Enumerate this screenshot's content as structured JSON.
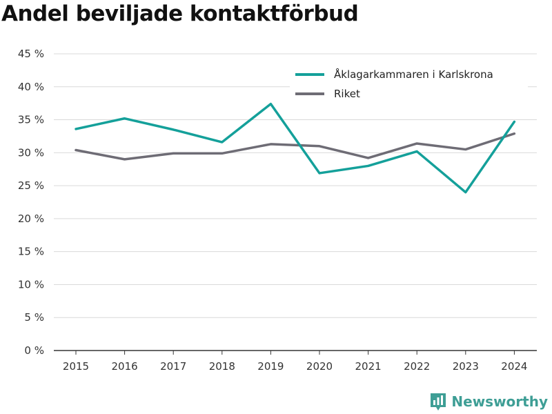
{
  "chart_data": {
    "type": "line",
    "title": "Andel beviljade kontaktförbud",
    "xlabel": "",
    "ylabel": "",
    "categories": [
      "2015",
      "2016",
      "2017",
      "2018",
      "2019",
      "2020",
      "2021",
      "2022",
      "2023",
      "2024"
    ],
    "ylim": [
      0,
      45
    ],
    "yticks": [
      0,
      5,
      10,
      15,
      20,
      25,
      30,
      35,
      40,
      45
    ],
    "ytick_labels": [
      "0 %",
      "5 %",
      "10 %",
      "15 %",
      "20 %",
      "25 %",
      "30 %",
      "35 %",
      "40 %",
      "45 %"
    ],
    "grid": true,
    "legend_position": "top-right",
    "series": [
      {
        "name": "Åklagarkammaren i Karlskrona",
        "color": "#14a09a",
        "values": [
          33.6,
          35.2,
          33.5,
          31.6,
          37.4,
          26.9,
          28.0,
          30.2,
          24.0,
          34.7
        ]
      },
      {
        "name": "Riket",
        "color": "#6e6c75",
        "values": [
          30.4,
          29.0,
          29.9,
          29.9,
          31.3,
          31.0,
          29.2,
          31.4,
          30.5,
          32.9
        ]
      }
    ]
  },
  "brand": {
    "name": "Newsworthy",
    "color": "#3e9e95"
  }
}
